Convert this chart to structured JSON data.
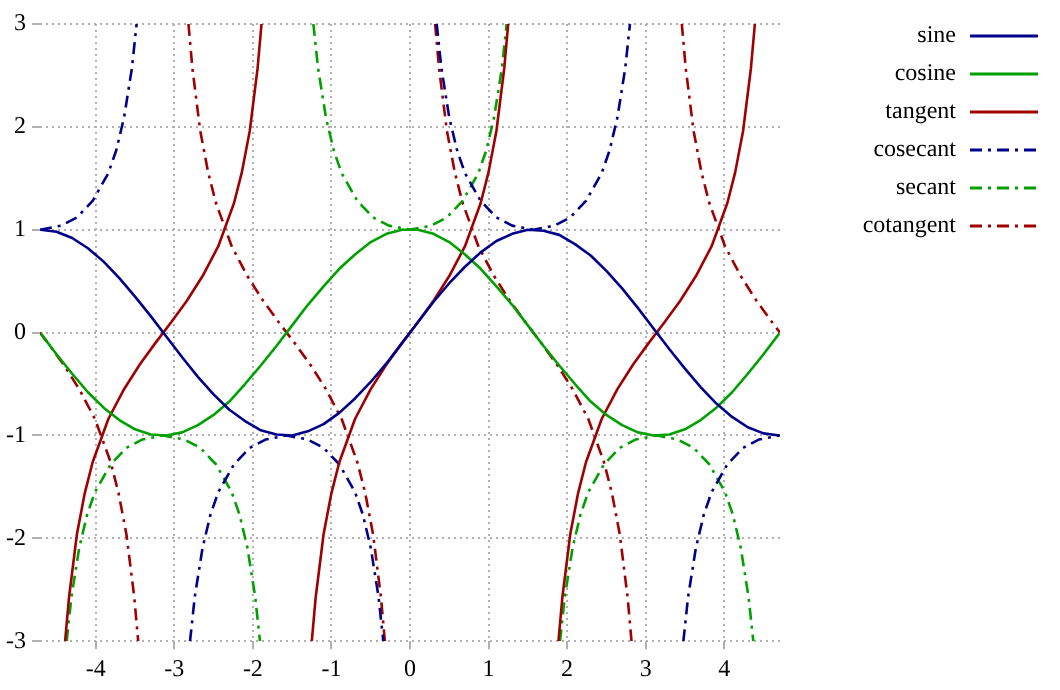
{
  "chart_data": {
    "type": "line",
    "x": [
      -4.7,
      -4.5,
      -4.3,
      -4.1,
      -3.9,
      -3.7,
      -3.5,
      -3.3,
      -3.1,
      -2.9,
      -2.7,
      -2.5,
      -2.3,
      -2.1,
      -1.9,
      -1.7,
      -1.5,
      -1.3,
      -1.1,
      -0.9,
      -0.7,
      -0.5,
      -0.3,
      -0.1,
      0.1,
      0.3,
      0.5,
      0.7,
      0.9,
      1.1,
      1.3,
      1.5,
      1.7,
      1.9,
      2.1,
      2.3,
      2.5,
      2.7,
      2.9,
      3.1,
      3.3,
      3.5,
      3.7,
      3.9,
      4.1,
      4.3,
      4.5,
      4.7
    ],
    "series": [
      {
        "name": "sine",
        "color": "#00008b",
        "line_style": "solid",
        "values": [
          1.0,
          0.98,
          0.92,
          0.82,
          0.69,
          0.53,
          0.35,
          0.16,
          -0.04,
          -0.24,
          -0.43,
          -0.6,
          -0.75,
          -0.86,
          -0.95,
          -0.99,
          -1.0,
          -0.96,
          -0.89,
          -0.78,
          -0.64,
          -0.48,
          -0.3,
          -0.1,
          0.1,
          0.3,
          0.48,
          0.64,
          0.78,
          0.89,
          0.96,
          1.0,
          0.99,
          0.95,
          0.86,
          0.75,
          0.6,
          0.43,
          0.24,
          0.04,
          -0.16,
          -0.35,
          -0.53,
          -0.69,
          -0.82,
          -0.92,
          -0.98,
          -1.0
        ]
      },
      {
        "name": "cosine",
        "color": "#00a000",
        "line_style": "solid",
        "values": [
          -0.01,
          -0.21,
          -0.4,
          -0.58,
          -0.73,
          -0.85,
          -0.94,
          -0.99,
          -1.0,
          -0.97,
          -0.9,
          -0.8,
          -0.67,
          -0.5,
          -0.32,
          -0.13,
          0.07,
          0.27,
          0.45,
          0.62,
          0.76,
          0.88,
          0.96,
          1.0,
          1.0,
          0.96,
          0.88,
          0.76,
          0.62,
          0.45,
          0.27,
          0.07,
          -0.13,
          -0.32,
          -0.5,
          -0.67,
          -0.8,
          -0.9,
          -0.97,
          -1.0,
          -0.99,
          -0.94,
          -0.85,
          -0.73,
          -0.58,
          -0.4,
          -0.21,
          -0.01
        ]
      },
      {
        "name": "tangent",
        "color": "#a00000",
        "line_style": "solid",
        "x": [
          -4.39,
          -4.34,
          -4.24,
          -4.14,
          -4.04,
          -3.84,
          -3.64,
          -3.44,
          -3.24,
          -3.04,
          -2.84,
          -2.64,
          -2.44,
          -2.24,
          -2.14,
          -2.04,
          -1.94,
          -1.89,
          -1.57,
          -1.25,
          -1.2,
          -1.1,
          -1.0,
          -0.9,
          -0.7,
          -0.5,
          -0.3,
          -0.1,
          0.1,
          0.3,
          0.5,
          0.7,
          0.9,
          1.0,
          1.1,
          1.2,
          1.25,
          1.57,
          1.89,
          1.94,
          2.04,
          2.14,
          2.24,
          2.44,
          2.64,
          2.84,
          3.04,
          3.24,
          3.44,
          3.64,
          3.84,
          4.04,
          4.14,
          4.24,
          4.34,
          4.39
        ],
        "values": [
          -3,
          -2.57,
          -1.96,
          -1.56,
          -1.26,
          -0.84,
          -0.55,
          -0.31,
          -0.1,
          0.1,
          0.31,
          0.55,
          0.84,
          1.26,
          1.56,
          1.96,
          2.57,
          3,
          null,
          -3,
          -2.57,
          -1.96,
          -1.56,
          -1.26,
          -0.84,
          -0.55,
          -0.31,
          -0.1,
          0.1,
          0.31,
          0.55,
          0.84,
          1.26,
          1.56,
          1.96,
          2.57,
          3,
          null,
          -3,
          -2.57,
          -1.96,
          -1.56,
          -1.26,
          -0.84,
          -0.55,
          -0.31,
          -0.1,
          0.1,
          0.31,
          0.55,
          0.84,
          1.26,
          1.56,
          1.96,
          2.57,
          3
        ]
      },
      {
        "name": "cosecant",
        "color": "#00008b",
        "line_style": "dashed",
        "x": [
          -4.71,
          -4.44,
          -4.24,
          -4.04,
          -3.84,
          -3.74,
          -3.64,
          -3.54,
          -3.48,
          -3.14,
          -2.8,
          -2.74,
          -2.64,
          -2.54,
          -2.44,
          -2.24,
          -2.04,
          -1.84,
          -1.57,
          -1.3,
          -1.1,
          -0.9,
          -0.7,
          -0.6,
          -0.5,
          -0.4,
          -0.34,
          0,
          0.34,
          0.4,
          0.5,
          0.6,
          0.7,
          0.9,
          1.1,
          1.3,
          1.57,
          1.84,
          2.04,
          2.24,
          2.44,
          2.54,
          2.64,
          2.74,
          2.8,
          3.14,
          3.48,
          3.54,
          3.64,
          3.74,
          3.84,
          4.04,
          4.24,
          4.44,
          4.71
        ],
        "values": [
          1.0,
          1.04,
          1.12,
          1.28,
          1.55,
          1.77,
          2.09,
          2.57,
          3,
          null,
          -3,
          -2.57,
          -2.09,
          -1.77,
          -1.55,
          -1.28,
          -1.12,
          -1.04,
          -1.0,
          -1.04,
          -1.12,
          -1.28,
          -1.55,
          -1.77,
          -2.09,
          -2.57,
          -3,
          null,
          3,
          2.57,
          2.09,
          1.77,
          1.55,
          1.28,
          1.12,
          1.04,
          1.0,
          1.04,
          1.12,
          1.28,
          1.55,
          1.77,
          2.09,
          2.57,
          3,
          null,
          -3,
          -2.57,
          -2.09,
          -1.77,
          -1.55,
          -1.28,
          -1.12,
          -1.04,
          -1.0
        ]
      },
      {
        "name": "secant",
        "color": "#00a000",
        "line_style": "dashed",
        "x": [
          -4.37,
          -4.31,
          -4.21,
          -4.11,
          -4.01,
          -3.81,
          -3.61,
          -3.41,
          -3.14,
          -2.87,
          -2.67,
          -2.47,
          -2.27,
          -2.17,
          -2.07,
          -1.97,
          -1.91,
          -1.57,
          -1.23,
          -1.17,
          -1.07,
          -0.97,
          -0.87,
          -0.67,
          -0.47,
          -0.27,
          0,
          0.27,
          0.47,
          0.67,
          0.87,
          0.97,
          1.07,
          1.17,
          1.23,
          1.57,
          1.91,
          1.97,
          2.07,
          2.17,
          2.27,
          2.47,
          2.67,
          2.87,
          3.14,
          3.41,
          3.61,
          3.81,
          4.01,
          4.11,
          4.21,
          4.31,
          4.37
        ],
        "values": [
          -3,
          -2.57,
          -2.09,
          -1.77,
          -1.55,
          -1.28,
          -1.12,
          -1.04,
          -1,
          -1.04,
          -1.12,
          -1.28,
          -1.55,
          -1.77,
          -2.09,
          -2.57,
          -3,
          null,
          3,
          2.57,
          2.09,
          1.77,
          1.55,
          1.28,
          1.12,
          1.04,
          1,
          1.04,
          1.12,
          1.28,
          1.55,
          1.77,
          2.09,
          2.57,
          3,
          null,
          -3,
          -2.57,
          -2.09,
          -1.77,
          -1.55,
          -1.28,
          -1.12,
          -1.04,
          -1,
          -1.04,
          -1.12,
          -1.28,
          -1.55,
          -1.77,
          -2.09,
          -2.57,
          -3
        ]
      },
      {
        "name": "cotangent",
        "color": "#a00000",
        "line_style": "dashed",
        "x": [
          -4.71,
          -4.61,
          -4.41,
          -4.21,
          -4.01,
          -3.81,
          -3.71,
          -3.61,
          -3.51,
          -3.46,
          -3.14,
          -2.82,
          -2.77,
          -2.67,
          -2.57,
          -2.47,
          -2.27,
          -2.07,
          -1.87,
          -1.67,
          -1.47,
          -1.27,
          -1.07,
          -0.87,
          -0.67,
          -0.57,
          -0.47,
          -0.37,
          -0.32,
          0,
          0.32,
          0.37,
          0.47,
          0.57,
          0.67,
          0.87,
          1.07,
          1.27,
          1.47,
          1.67,
          1.87,
          2.07,
          2.27,
          2.47,
          2.57,
          2.67,
          2.77,
          2.82,
          3.14,
          3.46,
          3.51,
          3.61,
          3.71,
          3.81,
          4.01,
          4.21,
          4.41,
          4.61,
          4.71
        ],
        "values": [
          0,
          -0.1,
          -0.31,
          -0.55,
          -0.84,
          -1.26,
          -1.56,
          -1.96,
          -2.57,
          -3,
          null,
          3,
          2.57,
          1.96,
          1.56,
          1.26,
          0.84,
          0.55,
          0.31,
          0.1,
          -0.1,
          -0.31,
          -0.55,
          -0.84,
          -1.26,
          -1.56,
          -1.96,
          -2.57,
          -3,
          null,
          3,
          2.57,
          1.96,
          1.56,
          1.26,
          0.84,
          0.55,
          0.31,
          0.1,
          -0.1,
          -0.31,
          -0.55,
          -0.84,
          -1.26,
          -1.56,
          -1.96,
          -2.57,
          -3,
          null,
          3,
          2.57,
          1.96,
          1.56,
          1.26,
          0.84,
          0.55,
          0.31,
          0.1,
          0
        ]
      }
    ],
    "xlim": [
      -4.71,
      4.71
    ],
    "xticks": [
      -4,
      -3,
      -2,
      -1,
      0,
      1,
      2,
      3,
      4
    ],
    "ylim": [
      -3,
      3
    ],
    "yticks": [
      -3,
      -2,
      -1,
      0,
      1,
      2,
      3
    ],
    "grid": true,
    "legend": "right",
    "marker": "none"
  }
}
